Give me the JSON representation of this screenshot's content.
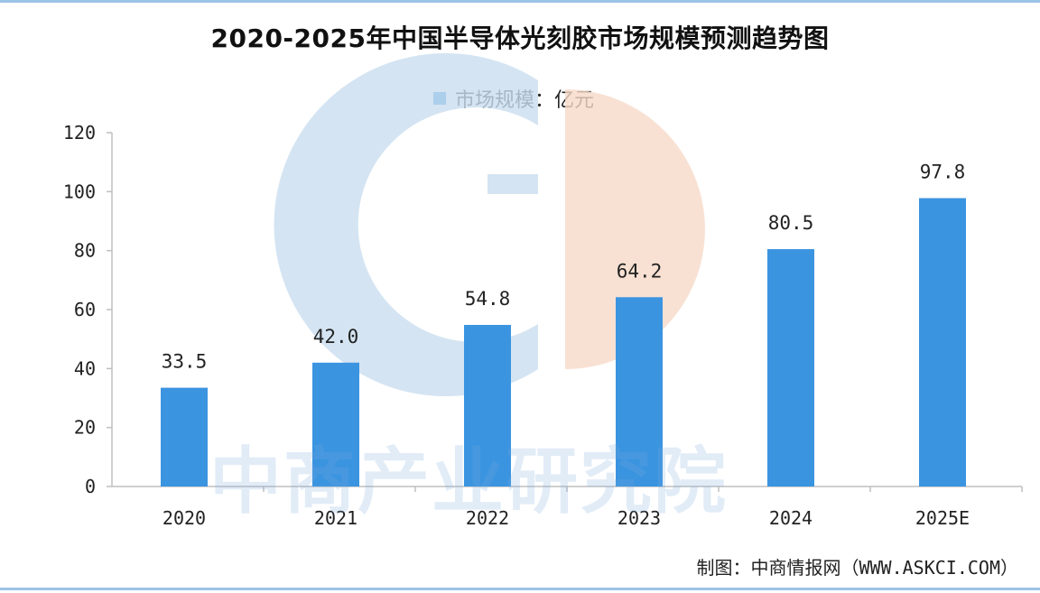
{
  "chart_data": {
    "type": "bar",
    "title": "2020-2025年中国半导体光刻胶市场规模预测趋势图",
    "categories": [
      "2020",
      "2021",
      "2022",
      "2023",
      "2024",
      "2025E"
    ],
    "series": [
      {
        "name": "市场规模：亿元",
        "values": [
          33.5,
          42.0,
          54.8,
          64.2,
          80.5,
          97.8
        ],
        "value_labels": [
          "33.5",
          "42.0",
          "54.8",
          "64.2",
          "80.5",
          "97.8"
        ],
        "color": "#3b94e0"
      }
    ],
    "ylim": [
      0,
      120
    ],
    "yticks": [
      0,
      20,
      40,
      60,
      80,
      100,
      120
    ],
    "xlabel": "",
    "ylabel": "",
    "grid": false,
    "legend_position": "top-center"
  },
  "watermark": "中商产业研究院",
  "source": "制图：中商情报网（WWW.ASKCI.COM）",
  "colors": {
    "bar": "#3b94e0",
    "axis": "#bfbfbf",
    "border": "#9dc3e6",
    "logo_blue": "#c9ddef",
    "logo_orange": "#f6d9c8"
  }
}
